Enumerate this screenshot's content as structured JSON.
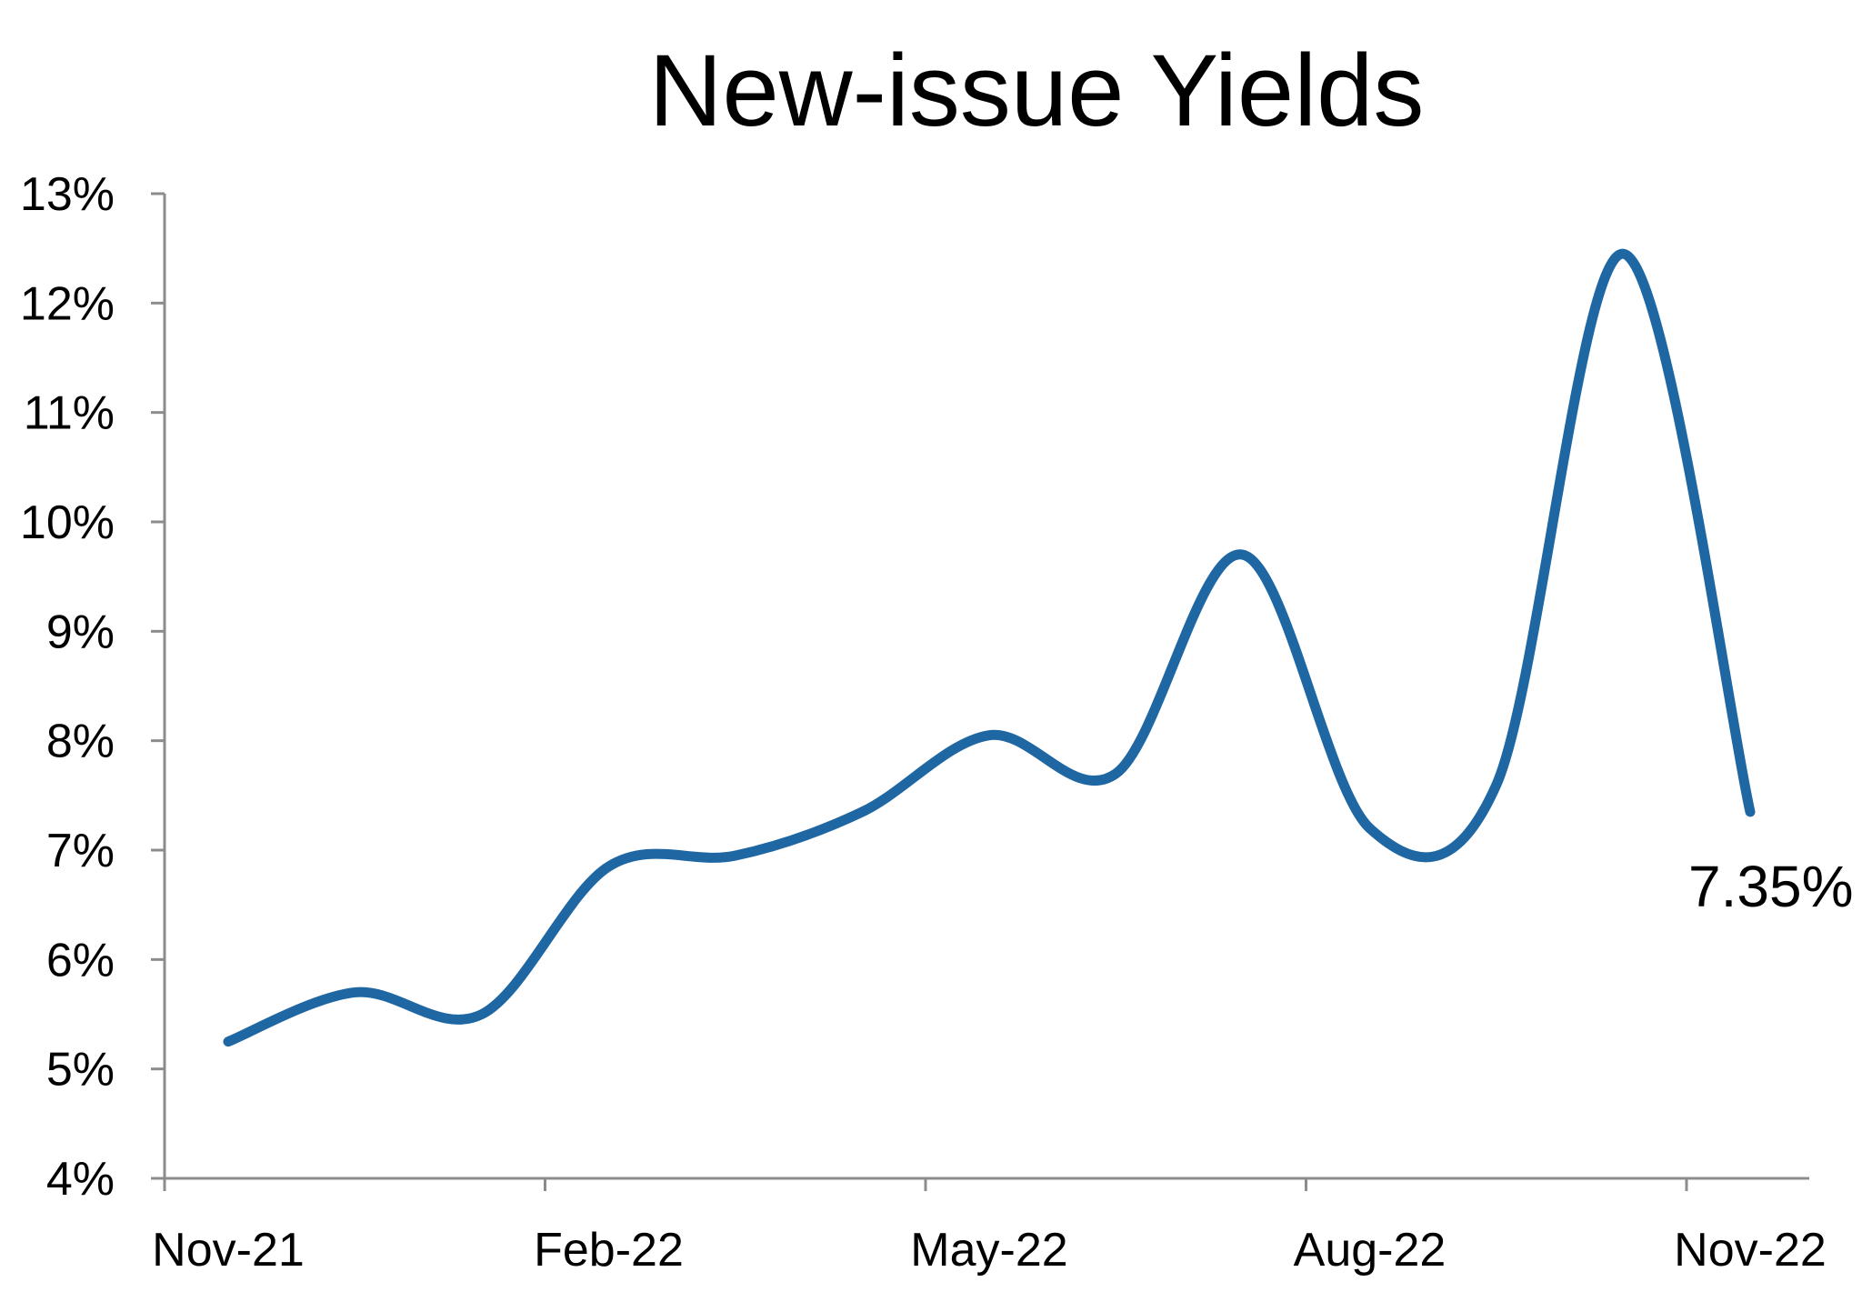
{
  "chart_data": {
    "type": "line",
    "title": "New-issue Yields",
    "xlabel": "",
    "ylabel": "",
    "x": [
      "2021-11",
      "2021-12",
      "2022-01",
      "2022-02",
      "2022-03",
      "2022-04",
      "2022-05",
      "2022-06",
      "2022-07",
      "2022-08",
      "2022-09",
      "2022-10",
      "2022-11"
    ],
    "x_tick_labels": [
      "Nov-21",
      "Feb-22",
      "May-22",
      "Aug-22",
      "Nov-22"
    ],
    "y_tick_labels": [
      "4%",
      "5%",
      "6%",
      "7%",
      "8%",
      "9%",
      "10%",
      "11%",
      "12%",
      "13%"
    ],
    "ylim": [
      4,
      13
    ],
    "y_unit": "%",
    "series": [
      {
        "values": [
          5.25,
          5.7,
          5.5,
          6.85,
          6.95,
          7.35,
          8.05,
          7.7,
          9.7,
          7.2,
          7.6,
          12.45,
          7.35
        ],
        "color": "#1f67a3"
      }
    ],
    "annotations": [
      {
        "text": "7.35%",
        "point_index": 12
      }
    ],
    "grid": false,
    "legend": "none"
  }
}
